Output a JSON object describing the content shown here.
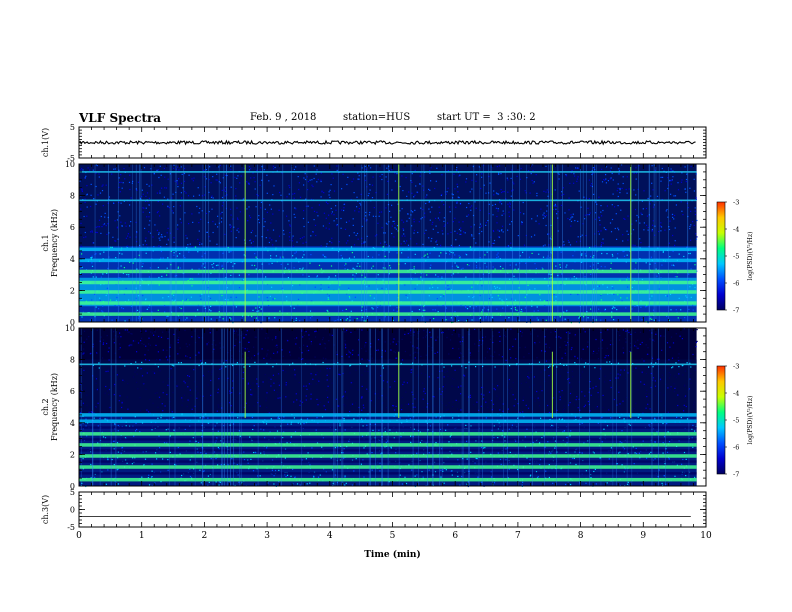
{
  "header": {
    "title": "VLF Spectra",
    "date": "Feb. 9 , 2018",
    "station": "station=HUS",
    "start": "start UT =  3 :30: 2"
  },
  "chart_data": [
    {
      "type": "line",
      "name": "ch1-waveform",
      "ylabel": "ch.1(V)",
      "ylim": [
        -5,
        5
      ],
      "yticks": [
        "5",
        "-5"
      ],
      "xlim": [
        0,
        10
      ],
      "baseline_value": 0
    },
    {
      "type": "heatmap",
      "name": "ch1-spectrogram",
      "ylabel": "ch.1\nFrequency (kHz)",
      "ylim": [
        0,
        10
      ],
      "yticks": [
        "0",
        "2",
        "4",
        "6",
        "8",
        "10"
      ],
      "xlim": [
        0,
        10
      ],
      "data_end_min": 9.85,
      "colorbar": {
        "label": "log(PSD)(V²/Hz)",
        "range": [
          -7,
          -3
        ],
        "ticks": [
          "-3",
          "-4",
          "-5",
          "-6",
          "-7"
        ]
      },
      "bands_khz": [
        0.5,
        1.2,
        1.9,
        2.5,
        3.2,
        3.9,
        4.6,
        7.7,
        9.5
      ],
      "bright_lines_min": [
        2.65,
        5.1,
        7.55,
        8.8
      ]
    },
    {
      "type": "heatmap",
      "name": "ch2-spectrogram",
      "ylabel": "ch.2\nFrequency (kHz)",
      "ylim": [
        0,
        10
      ],
      "yticks": [
        "0",
        "2",
        "4",
        "6",
        "8",
        "10"
      ],
      "xlim": [
        0,
        10
      ],
      "data_end_min": 9.85,
      "colorbar": {
        "label": "log(PSD)(V²/Hz)",
        "range": [
          -7,
          -3
        ],
        "ticks": [
          "-3",
          "-4",
          "-5",
          "-6",
          "-7"
        ]
      },
      "bands_khz": [
        0.4,
        1.2,
        1.9,
        2.6,
        3.3,
        4.1,
        4.5,
        7.7
      ],
      "bright_lines_min": [
        2.65,
        5.1,
        7.55,
        8.8
      ]
    },
    {
      "type": "line",
      "name": "ch3-waveform",
      "ylabel": "ch.3(V)",
      "ylim": [
        -5,
        5
      ],
      "yticks": [
        "5",
        "0",
        "-5"
      ],
      "xlim": [
        0,
        10
      ],
      "xticks": [
        "0",
        "1",
        "2",
        "3",
        "4",
        "5",
        "6",
        "7",
        "8",
        "9",
        "10"
      ],
      "xlabel": "Time (min)",
      "baseline_value": -2
    }
  ],
  "colors": {
    "scale": [
      "#000060",
      "#0000d0",
      "#0050ff",
      "#00c8ff",
      "#00ff80",
      "#c8ff00",
      "#ffc800",
      "#ff3000",
      "#ffffff"
    ]
  }
}
